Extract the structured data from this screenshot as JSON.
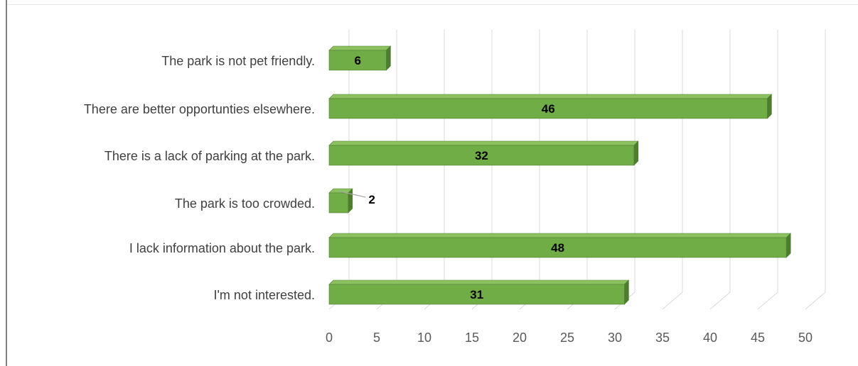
{
  "chart_data": {
    "type": "bar",
    "orientation": "horizontal",
    "categories": [
      "I'm not interested.",
      "I lack information about the park.",
      "The park is too crowded.",
      "There is a lack of parking at the park.",
      "There are better opportunties elsewhere.",
      "The park is not pet friendly."
    ],
    "values": [
      31,
      48,
      2,
      32,
      46,
      6
    ],
    "xlim": [
      0,
      50
    ],
    "ticks": [
      0,
      5,
      10,
      15,
      20,
      25,
      30,
      35,
      40,
      45,
      50
    ],
    "title": "",
    "xlabel": "",
    "ylabel": "",
    "grid": true,
    "legend": "none",
    "style": "3d-bars",
    "colors": {
      "bar_front": "#70ad47",
      "bar_top": "#8cc160",
      "bar_side": "#4e7d30",
      "bar_edge": "#507e32",
      "grid": "#d9d9d9"
    }
  }
}
